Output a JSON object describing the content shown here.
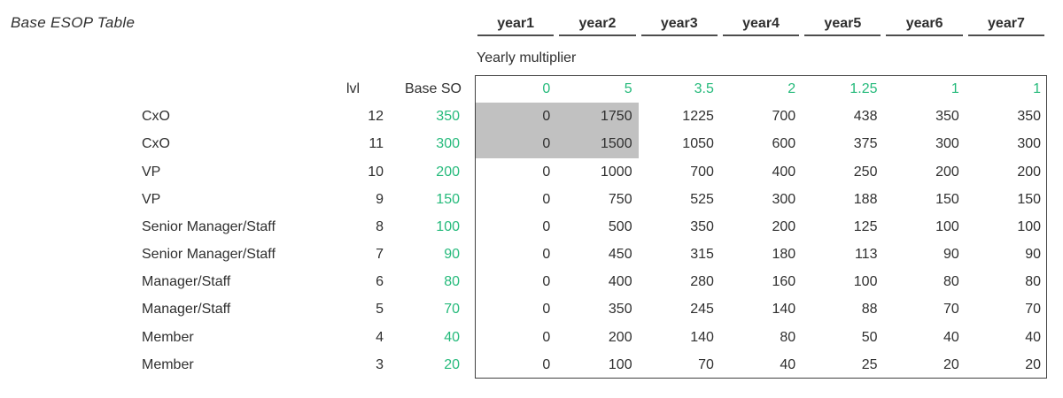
{
  "title": "Base ESOP Table",
  "table": {
    "year_headers": [
      "year1",
      "year2",
      "year3",
      "year4",
      "year5",
      "year6",
      "year7"
    ],
    "multiplier_label": "Yearly multiplier",
    "lvl_header": "lvl",
    "base_so_header": "Base SO",
    "multipliers": [
      "0",
      "5",
      "3.5",
      "2",
      "1.25",
      "1",
      "1"
    ],
    "rows": [
      {
        "role": "CxO",
        "lvl": "12",
        "base_so": "350",
        "values": [
          "0",
          "1750",
          "1225",
          "700",
          "438",
          "350",
          "350"
        ]
      },
      {
        "role": "CxO",
        "lvl": "11",
        "base_so": "300",
        "values": [
          "0",
          "1500",
          "1050",
          "600",
          "375",
          "300",
          "300"
        ]
      },
      {
        "role": "VP",
        "lvl": "10",
        "base_so": "200",
        "values": [
          "0",
          "1000",
          "700",
          "400",
          "250",
          "200",
          "200"
        ]
      },
      {
        "role": "VP",
        "lvl": "9",
        "base_so": "150",
        "values": [
          "0",
          "750",
          "525",
          "300",
          "188",
          "150",
          "150"
        ]
      },
      {
        "role": "Senior Manager/Staff",
        "lvl": "8",
        "base_so": "100",
        "values": [
          "0",
          "500",
          "350",
          "200",
          "125",
          "100",
          "100"
        ]
      },
      {
        "role": "Senior Manager/Staff",
        "lvl": "7",
        "base_so": "90",
        "values": [
          "0",
          "450",
          "315",
          "180",
          "113",
          "90",
          "90"
        ]
      },
      {
        "role": "Manager/Staff",
        "lvl": "6",
        "base_so": "80",
        "values": [
          "0",
          "400",
          "280",
          "160",
          "100",
          "80",
          "80"
        ]
      },
      {
        "role": "Manager/Staff",
        "lvl": "5",
        "base_so": "70",
        "values": [
          "0",
          "350",
          "245",
          "140",
          "88",
          "70",
          "70"
        ]
      },
      {
        "role": "Member",
        "lvl": "4",
        "base_so": "40",
        "values": [
          "0",
          "200",
          "140",
          "80",
          "50",
          "40",
          "40"
        ]
      },
      {
        "role": "Member",
        "lvl": "3",
        "base_so": "20",
        "values": [
          "0",
          "100",
          "70",
          "40",
          "25",
          "20",
          "20"
        ]
      }
    ],
    "selection": {
      "row_start": 0,
      "row_count": 2,
      "col_start": 0,
      "col_count": 2
    }
  },
  "colors": {
    "green": "#25ba7b",
    "highlight": "#c1c1c1",
    "text": "#2f2f2f",
    "border": "#404040",
    "rule": "#4d4d4d"
  }
}
